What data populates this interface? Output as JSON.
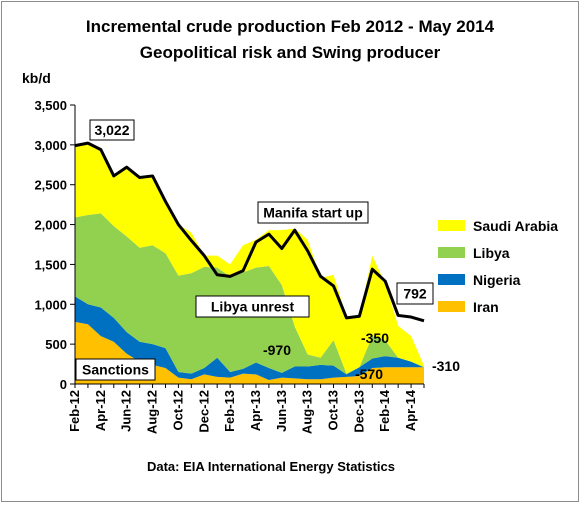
{
  "chart_data": {
    "type": "area",
    "title": "Incremental crude production Feb 2012 - May 2014",
    "subtitle": "Geopolitical risk and Swing producer",
    "ylabel": "kb/d",
    "source": "Data: EIA International Energy Statistics",
    "ylim": [
      0,
      3500
    ],
    "yticks": [
      0,
      500,
      1000,
      1500,
      2000,
      2500,
      3000,
      3500
    ],
    "ytick_labels": [
      "0",
      "500",
      "1,000",
      "1,500",
      "2,000",
      "2,500",
      "3,000",
      "3,500"
    ],
    "x": [
      "Feb-12",
      "Mar-12",
      "Apr-12",
      "May-12",
      "Jun-12",
      "Jul-12",
      "Aug-12",
      "Sep-12",
      "Oct-12",
      "Nov-12",
      "Dec-12",
      "Jan-13",
      "Feb-13",
      "Mar-13",
      "Apr-13",
      "May-13",
      "Jun-13",
      "Jul-13",
      "Aug-13",
      "Sep-13",
      "Oct-13",
      "Nov-13",
      "Dec-13",
      "Jan-14",
      "Feb-14",
      "Mar-14",
      "Apr-14",
      "May-14"
    ],
    "xtick_labels": [
      "Feb-12",
      "Apr-12",
      "Jun-12",
      "Aug-12",
      "Oct-12",
      "Dec-12",
      "Feb-13",
      "Apr-13",
      "Jun-13",
      "Aug-13",
      "Oct-13",
      "Dec-13",
      "Feb-14",
      "Apr-14"
    ],
    "series": [
      {
        "name": "Iran",
        "color": "#FFC000",
        "values": [
          780,
          750,
          600,
          530,
          380,
          280,
          240,
          200,
          80,
          60,
          120,
          90,
          80,
          130,
          120,
          50,
          80,
          70,
          60,
          60,
          80,
          90,
          100,
          200,
          210,
          210,
          210,
          210
        ]
      },
      {
        "name": "Nigeria",
        "color": "#0070C0",
        "values": [
          320,
          250,
          360,
          300,
          270,
          250,
          260,
          250,
          70,
          70,
          80,
          240,
          70,
          60,
          150,
          150,
          60,
          150,
          160,
          180,
          150,
          30,
          110,
          120,
          140,
          120,
          70,
          0
        ]
      },
      {
        "name": "Libya",
        "color": "#92D050",
        "values": [
          990,
          1120,
          1180,
          1150,
          1200,
          1180,
          1240,
          1190,
          1210,
          1260,
          1270,
          1130,
          1200,
          1210,
          1190,
          1280,
          1100,
          500,
          150,
          90,
          320,
          10,
          0,
          280,
          200,
          0,
          0,
          0
        ]
      },
      {
        "name": "Saudi Arabia",
        "color": "#FFFF00",
        "values": [
          900,
          900,
          800,
          610,
          870,
          880,
          870,
          650,
          640,
          510,
          140,
          150,
          150,
          340,
          350,
          450,
          690,
          1230,
          1440,
          1000,
          820,
          710,
          640,
          1010,
          710,
          400,
          320,
          20
        ]
      }
    ],
    "total": [
      2990,
      3022,
      2940,
      2590,
      2720,
      2590,
      2610,
      2290,
      2000,
      1900,
      1610,
      1370,
      1350,
      1390,
      1810,
      1930,
      1930,
      1950,
      1810,
      1330,
      1370,
      840,
      850,
      1610,
      1260,
      730,
      600,
      230
    ],
    "total_line": [
      2990,
      3022,
      2940,
      2610,
      2720,
      2590,
      2610,
      2290,
      2000,
      1800,
      1610,
      1370,
      1350,
      1420,
      1780,
      1880,
      1700,
      1930,
      1670,
      1350,
      1230,
      830,
      850,
      1440,
      1290,
      860,
      840,
      792
    ],
    "legend": [
      "Saudi Arabia",
      "Libya",
      "Nigeria",
      "Iran"
    ],
    "legend_position": "right",
    "grid": false
  },
  "annotations": {
    "peak": "3,022",
    "manifa": "Manifa start up",
    "libya_unrest": "Libya unrest",
    "libya_delta": "-970",
    "sanctions": "Sanctions",
    "saudi_delta": "-350",
    "iran_delta": "-570",
    "end_value": "792",
    "nigeria_delta": "-310"
  },
  "line_color": "#000000"
}
